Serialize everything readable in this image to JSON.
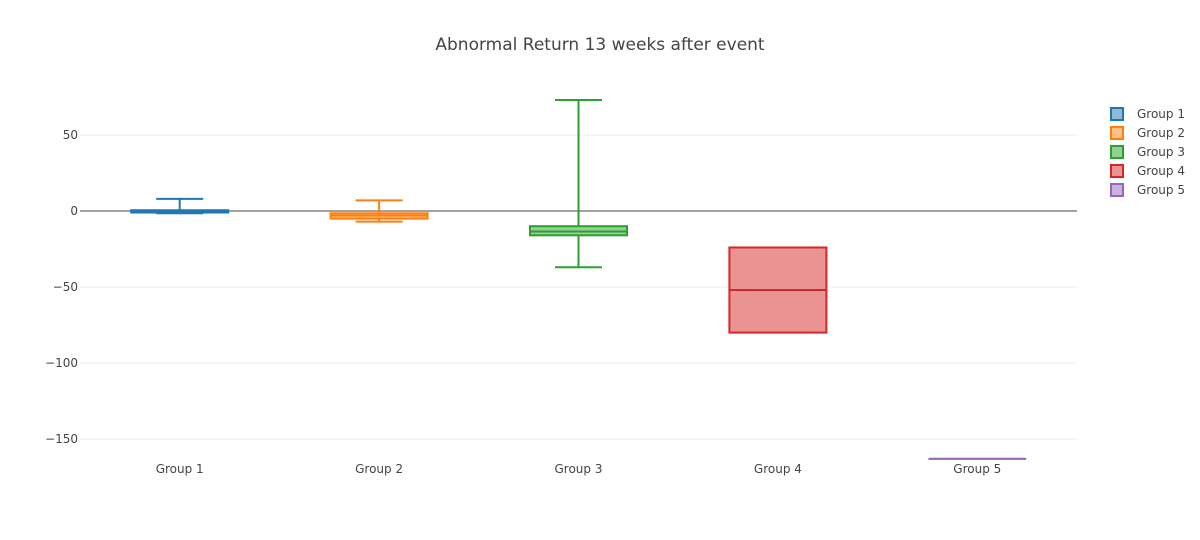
{
  "chart_data": {
    "type": "box",
    "title": "Abnormal Return 13 weeks after event",
    "xlabel": "",
    "ylabel": "",
    "ylim": [
      -163,
      80
    ],
    "yticks": [
      50,
      0,
      -50,
      -100,
      -150
    ],
    "ytick_labels": [
      "50",
      "0",
      "−50",
      "−100",
      "−150"
    ],
    "categories": [
      "Group 1",
      "Group 2",
      "Group 3",
      "Group 4",
      "Group 5"
    ],
    "grid": true,
    "legend_position": "top-right",
    "series": [
      {
        "name": "Group 1",
        "color": "#1f77b4",
        "fill": "#8fbbd9",
        "min": -1.5,
        "q1": -1.0,
        "median": 0.0,
        "q3": 0.5,
        "max": 8.0
      },
      {
        "name": "Group 2",
        "color": "#ff7f0e",
        "fill": "#ffbf86",
        "min": -7.0,
        "q1": -5.0,
        "median": -3.0,
        "q3": -1.5,
        "max": 7.0
      },
      {
        "name": "Group 3",
        "color": "#2ca02c",
        "fill": "#95cf95",
        "min": -37.0,
        "q1": -16.0,
        "median": -13.5,
        "q3": -10.0,
        "max": 73.0
      },
      {
        "name": "Group 4",
        "color": "#d62728",
        "fill": "#ea9393",
        "min": -80.0,
        "q1": -80.0,
        "median": -52.0,
        "q3": -24.0,
        "max": -24.0
      },
      {
        "name": "Group 5",
        "color": "#9467bd",
        "fill": "#c9b3de",
        "min": -163.0,
        "q1": -163.0,
        "median": -163.0,
        "q3": -163.0,
        "max": -163.0
      }
    ]
  }
}
